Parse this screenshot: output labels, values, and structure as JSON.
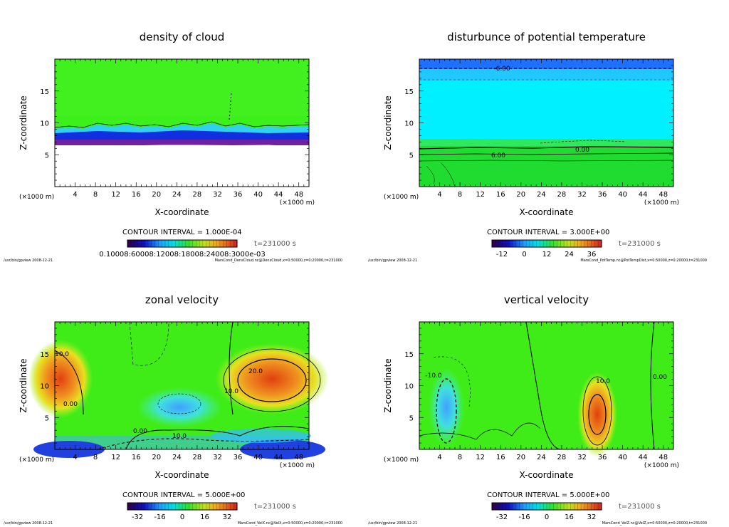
{
  "chart_data": [
    {
      "type": "heatmap",
      "title": "density of cloud",
      "xlabel": "X-coordinate",
      "ylabel": "Z-coordinate",
      "x_unit": "(×1000 m)",
      "xlim": [
        0,
        50
      ],
      "ylim": [
        0,
        20
      ],
      "xticks": [
        "4",
        "8",
        "12",
        "16",
        "20",
        "24",
        "28",
        "32",
        "36",
        "40",
        "44",
        "48"
      ],
      "yticks": [
        "5",
        "10",
        "15"
      ],
      "contour_interval": "CONTOUR INTERVAL = 1.000E-04",
      "time": "t=231000 s",
      "colorbar_labels": [
        "0.10008:60008:12008:18008:24008:3000e-03"
      ],
      "contour_labels": [],
      "footer_left": "/usr/bin/gpview  2008-12-21",
      "footer_right": "MarsCond_DensCloud.nc@DensCloud,x=0:50000,z=0:20000,t=231000"
    },
    {
      "type": "heatmap",
      "title": "disturbunce of potential temperature",
      "xlabel": "X-coordinate",
      "ylabel": "Z-coordinate",
      "x_unit": "(×1000 m)",
      "xlim": [
        0,
        50
      ],
      "ylim": [
        0,
        20
      ],
      "xticks": [
        "4",
        "8",
        "12",
        "16",
        "20",
        "24",
        "28",
        "32",
        "36",
        "40",
        "44",
        "48"
      ],
      "yticks": [
        "5",
        "10",
        "15"
      ],
      "contour_interval": "CONTOUR INTERVAL = 3.000E+00",
      "time": "t=231000 s",
      "colorbar_labels": [
        "-12",
        "0",
        "12",
        "24",
        "36"
      ],
      "contour_labels": [
        "-6.00",
        "0.00",
        "6.00"
      ],
      "footer_left": "/usr/bin/gpview  2008-12-21",
      "footer_right": "MarsCond_PotTemp.nc@PotTempDist,x=0:50000,z=0:20000,t=231000"
    },
    {
      "type": "heatmap",
      "title": "zonal velocity",
      "xlabel": "X-coordinate",
      "ylabel": "Z-coordinate",
      "x_unit": "(×1000 m)",
      "xlim": [
        0,
        50
      ],
      "ylim": [
        0,
        20
      ],
      "xticks": [
        "4",
        "8",
        "12",
        "16",
        "20",
        "24",
        "28",
        "32",
        "36",
        "40",
        "44",
        "48"
      ],
      "yticks": [
        "5",
        "10",
        "15"
      ],
      "contour_interval": "CONTOUR INTERVAL = 5.000E+00",
      "time": "t=231000 s",
      "colorbar_labels": [
        "-32",
        "-16",
        "0",
        "16",
        "32"
      ],
      "contour_labels": [
        "10.0",
        "20.0",
        "10.0",
        "0.00",
        "0.00",
        "10.0"
      ],
      "footer_left": "/usr/bin/gpview  2008-12-21",
      "footer_right": "MarsCond_VelX.nc@VelX,x=0:50000,z=0:20000,t=231000"
    },
    {
      "type": "heatmap",
      "title": "vertical velocity",
      "xlabel": "X-coordinate",
      "ylabel": "Z-coordinate",
      "x_unit": "(×1000 m)",
      "xlim": [
        0,
        50
      ],
      "ylim": [
        0,
        20
      ],
      "xticks": [
        "4",
        "8",
        "12",
        "16",
        "20",
        "24",
        "28",
        "32",
        "36",
        "40",
        "44",
        "48"
      ],
      "yticks": [
        "5",
        "10",
        "15"
      ],
      "contour_interval": "CONTOUR INTERVAL = 5.000E+00",
      "time": "t=231000 s",
      "colorbar_labels": [
        "-32",
        "-16",
        "0",
        "16",
        "32"
      ],
      "contour_labels": [
        "-10.0",
        "10.0",
        "0.00"
      ],
      "footer_left": "/usr/bin/gpview  2008-12-21",
      "footer_right": "MarsCond_VelZ.nc@VelZ,x=0:50000,z=0:20000,t=231000"
    }
  ]
}
